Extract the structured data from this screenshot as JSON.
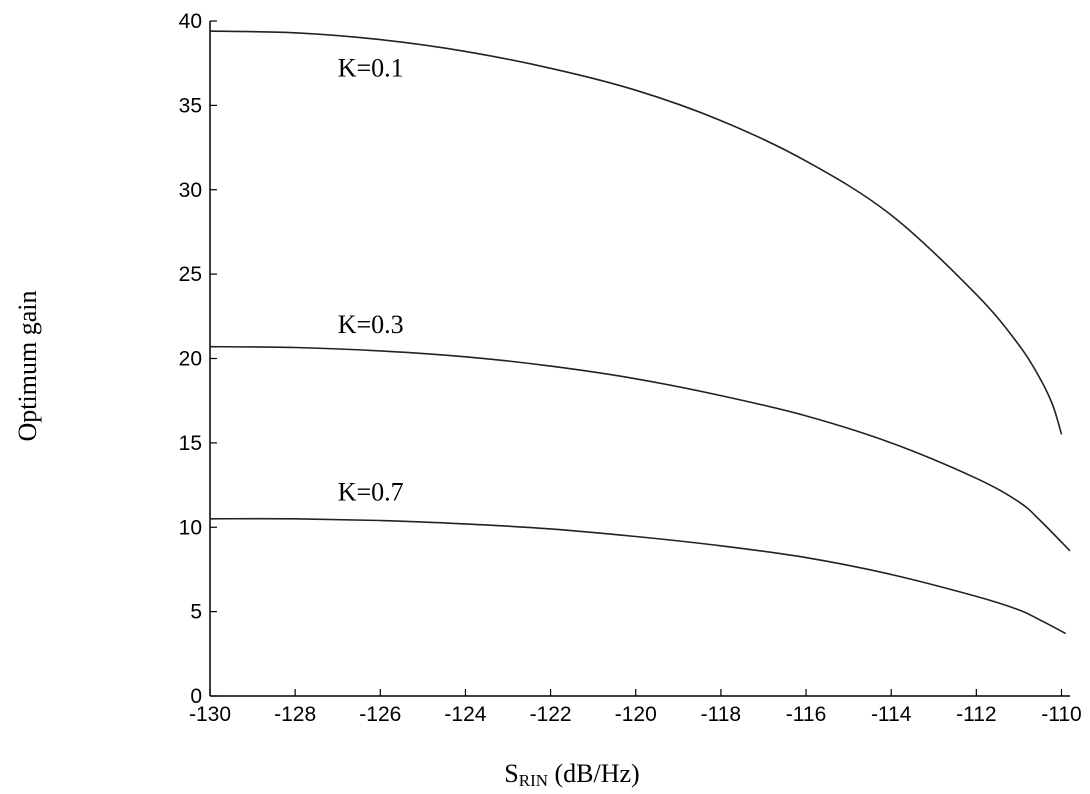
{
  "chart_data": {
    "type": "line",
    "xlabel_main": "S",
    "xlabel_sub": "RIN",
    "xlabel_unit": " (dB/Hz)",
    "ylabel": "Optimum gain",
    "xlim": [
      -130,
      -109.8
    ],
    "ylim": [
      0,
      40
    ],
    "x_ticks": [
      -130,
      -128,
      -126,
      -124,
      -122,
      -120,
      -118,
      -116,
      -114,
      -112,
      -110
    ],
    "x_tick_labels": [
      "-130",
      "-128",
      "-126",
      "-124",
      "-122",
      "-120",
      "-118",
      "-116",
      "-114",
      "-112",
      "-110"
    ],
    "y_ticks": [
      0,
      5,
      10,
      15,
      20,
      25,
      30,
      35,
      40
    ],
    "y_tick_labels": [
      "0",
      "5",
      "10",
      "15",
      "20",
      "25",
      "30",
      "35",
      "40"
    ],
    "grid": false,
    "series": [
      {
        "name": "K=0.1",
        "label_at": [
          -127,
          36.7
        ],
        "x": [
          -130,
          -128,
          -126,
          -124,
          -122,
          -120,
          -118,
          -116,
          -114,
          -112,
          -111,
          -110.5,
          -110.2,
          -110
        ],
        "y": [
          39.4,
          39.3,
          38.9,
          38.2,
          37.2,
          35.9,
          34.1,
          31.7,
          28.5,
          23.8,
          20.8,
          18.8,
          17.2,
          15.5
        ]
      },
      {
        "name": "K=0.3",
        "label_at": [
          -127,
          21.5
        ],
        "x": [
          -130,
          -128,
          -126,
          -124,
          -122,
          -120,
          -118,
          -116,
          -114,
          -112,
          -111,
          -110.5,
          -109.8
        ],
        "y": [
          20.7,
          20.65,
          20.45,
          20.1,
          19.55,
          18.8,
          17.8,
          16.6,
          15.0,
          12.9,
          11.5,
          10.4,
          8.6
        ]
      },
      {
        "name": "K=0.7",
        "label_at": [
          -127,
          11.6
        ],
        "x": [
          -130,
          -128,
          -126,
          -124,
          -122,
          -120,
          -118,
          -116,
          -114,
          -112,
          -111,
          -110.5,
          -109.9
        ],
        "y": [
          10.5,
          10.5,
          10.4,
          10.2,
          9.9,
          9.45,
          8.9,
          8.2,
          7.2,
          5.9,
          5.1,
          4.5,
          3.7
        ]
      }
    ]
  }
}
